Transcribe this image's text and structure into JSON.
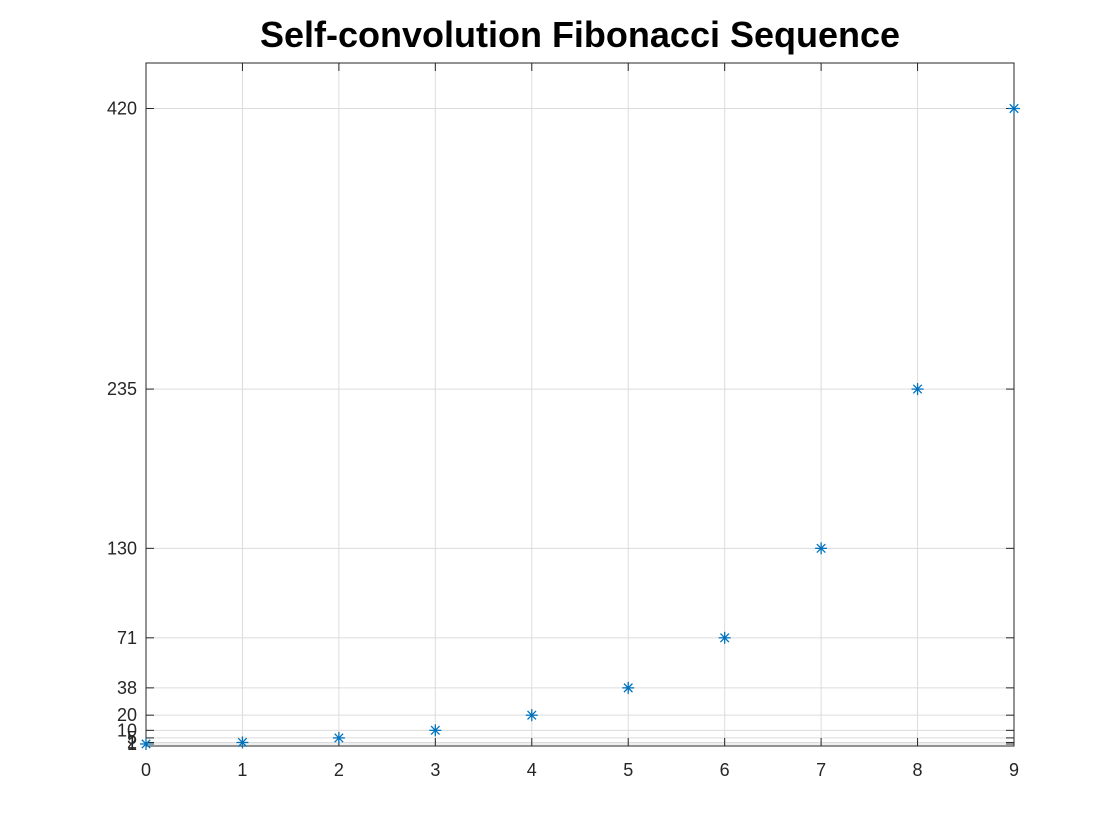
{
  "chart_data": {
    "type": "scatter",
    "title": "Self-convolution Fibonacci Sequence",
    "xlabel": "",
    "ylabel": "",
    "xlim": [
      0,
      9
    ],
    "ylim": [
      0,
      450
    ],
    "x_ticks": [
      0,
      1,
      2,
      3,
      4,
      5,
      6,
      7,
      8,
      9
    ],
    "y_ticks": [
      1,
      2,
      5,
      10,
      20,
      38,
      71,
      130,
      235,
      420
    ],
    "grid": true,
    "marker": "asterisk",
    "color": "#0072BD",
    "series": [
      {
        "x": [
          0,
          1,
          2,
          3,
          4,
          5,
          6,
          7,
          8,
          9
        ],
        "y": [
          1,
          2,
          5,
          10,
          20,
          38,
          71,
          130,
          235,
          420
        ]
      }
    ]
  }
}
